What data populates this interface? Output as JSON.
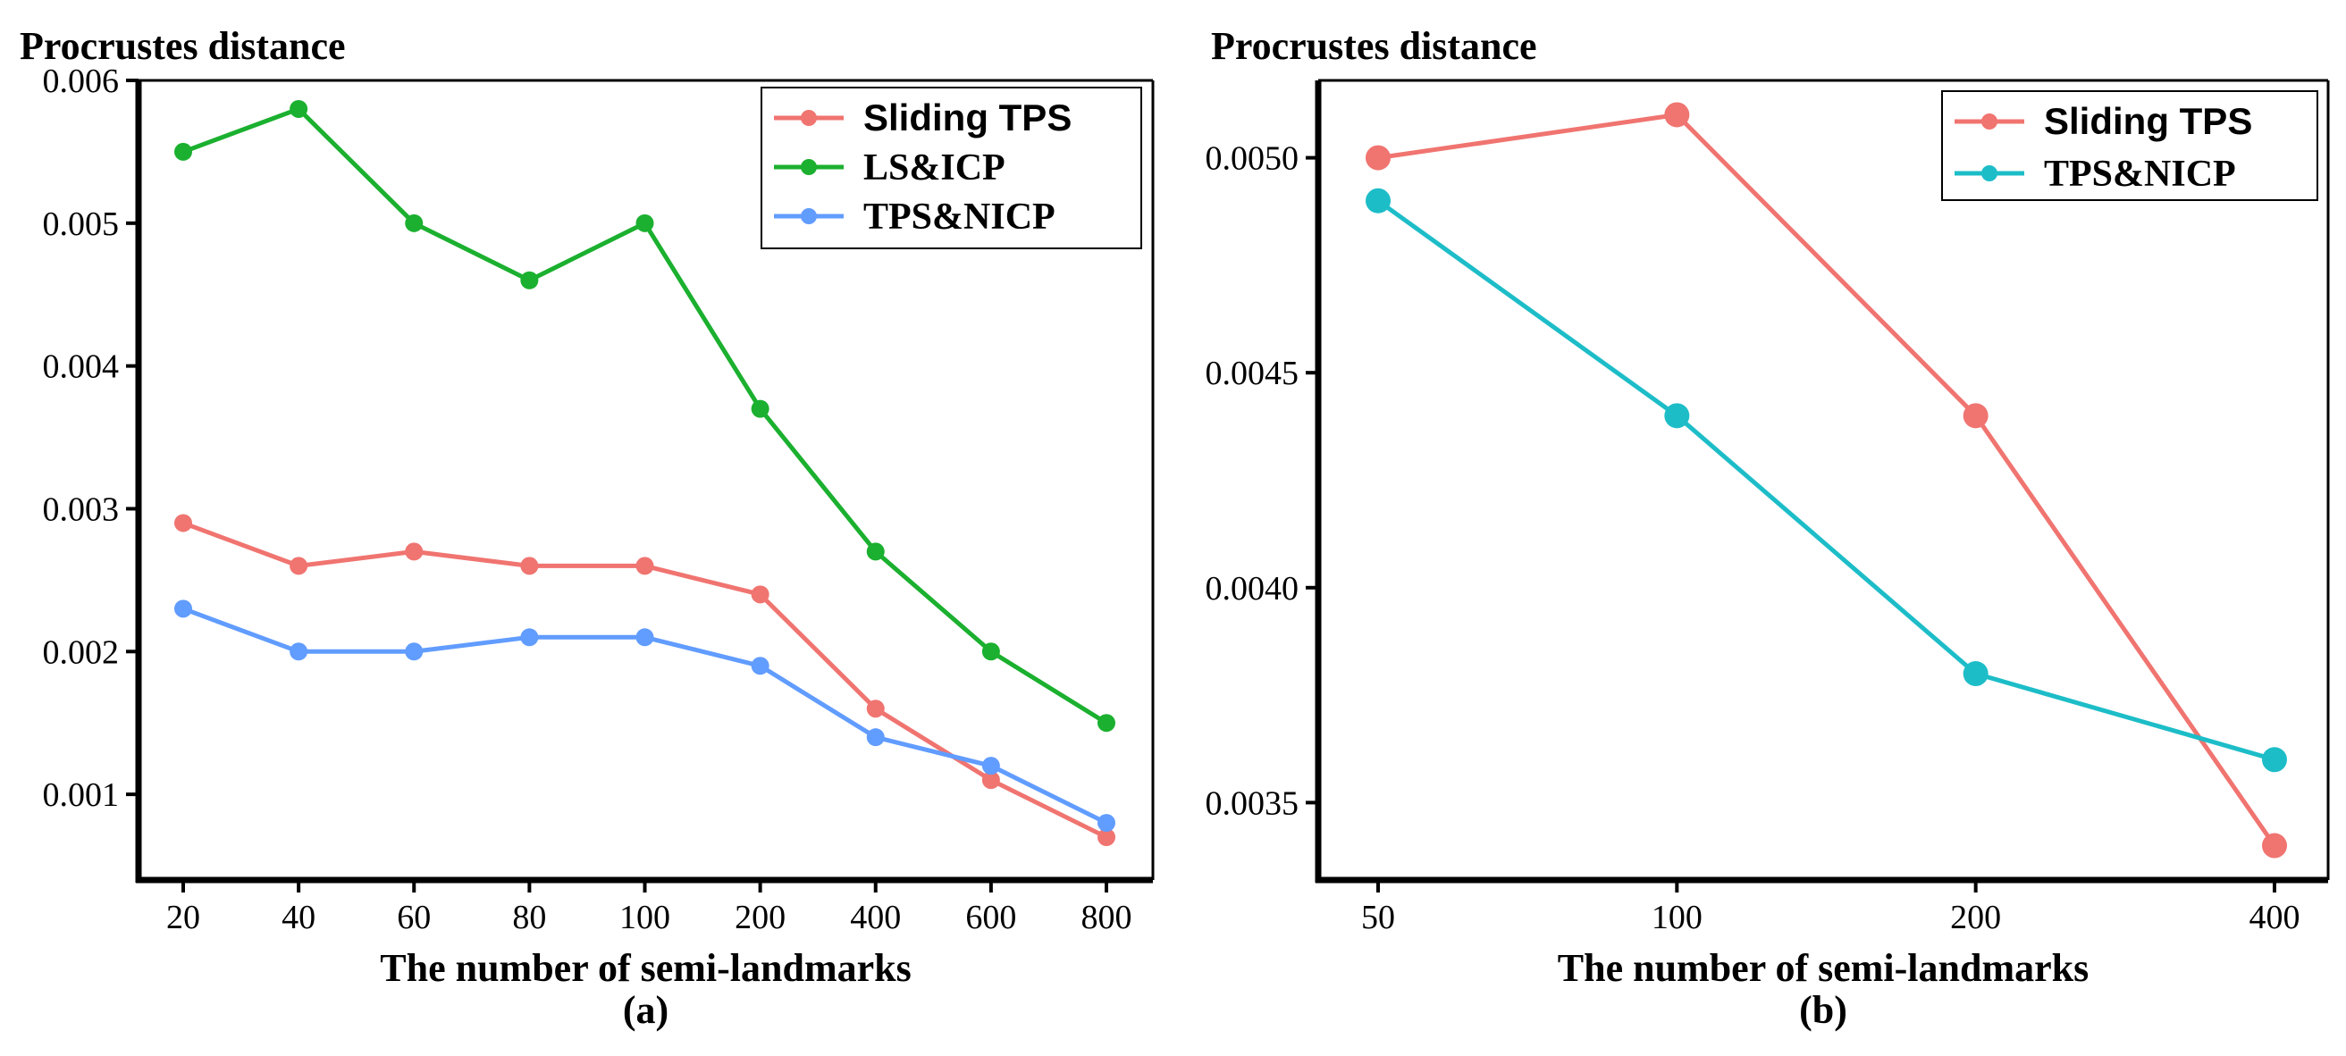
{
  "chart_data": [
    {
      "type": "line",
      "title": "Procrustes distance",
      "xlabel": "The number of semi-landmarks",
      "ylabel": "Procrustes distance",
      "caption": "(a)",
      "categories": [
        "20",
        "40",
        "60",
        "80",
        "100",
        "200",
        "400",
        "600",
        "800"
      ],
      "ylim": [
        0.0004,
        0.006
      ],
      "yticks": [
        0.001,
        0.002,
        0.003,
        0.004,
        0.005,
        0.006
      ],
      "ytick_labels": [
        "0.001",
        "0.002",
        "0.003",
        "0.004",
        "0.005",
        "0.006"
      ],
      "legend_position": "top-right",
      "series": [
        {
          "name": "Sliding TPS",
          "color": "#F07470",
          "font": "sans",
          "values": [
            0.0029,
            0.0026,
            0.0027,
            0.0026,
            0.0026,
            0.0024,
            0.0016,
            0.0011,
            0.0007
          ]
        },
        {
          "name": "LS&ICP",
          "color": "#1BB02F",
          "font": "serif",
          "values": [
            0.0055,
            0.0058,
            0.005,
            0.0046,
            0.005,
            0.0037,
            0.0027,
            0.002,
            0.0015
          ]
        },
        {
          "name": "TPS&NICP",
          "color": "#619CFF",
          "font": "serif",
          "values": [
            0.0023,
            0.002,
            0.002,
            0.0021,
            0.0021,
            0.0019,
            0.0014,
            0.0012,
            0.0008
          ]
        }
      ]
    },
    {
      "type": "line",
      "title": "Procrustes distance",
      "xlabel": "The number of semi-landmarks",
      "ylabel": "Procrustes distance",
      "caption": "(b)",
      "categories": [
        "50",
        "100",
        "200",
        "400"
      ],
      "ylim": [
        0.00332,
        0.00518
      ],
      "yticks": [
        0.0035,
        0.004,
        0.0045,
        0.005
      ],
      "ytick_labels": [
        "0.0035",
        "0.0040",
        "0.0045",
        "0.0050"
      ],
      "legend_position": "top-right",
      "series": [
        {
          "name": "Sliding TPS",
          "color": "#F07470",
          "font": "sans",
          "values": [
            0.005,
            0.0051,
            0.0044,
            0.0034
          ]
        },
        {
          "name": "TPS&NICP",
          "color": "#1DBDC8",
          "font": "serif",
          "values": [
            0.0049,
            0.0044,
            0.0038,
            0.0036
          ]
        }
      ]
    }
  ]
}
